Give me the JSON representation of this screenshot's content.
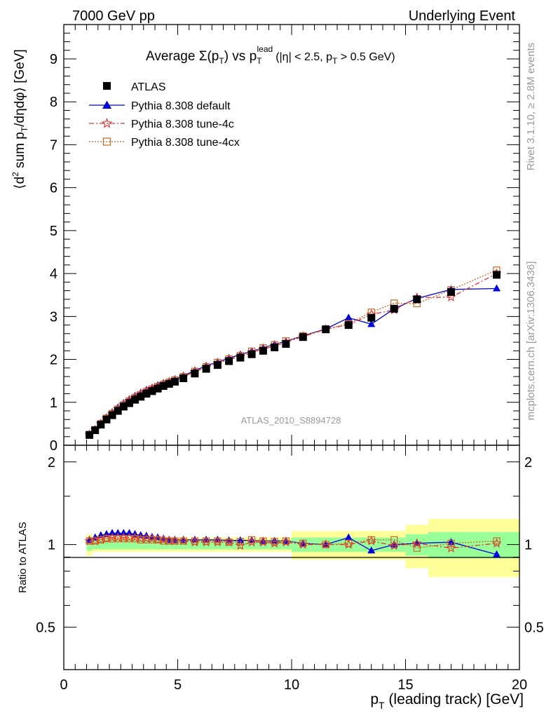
{
  "header": {
    "left": "7000 GeV pp",
    "right": "Underlying Event"
  },
  "side": {
    "rivet": "Rivet 3.1.10, ≥ 2.8M events",
    "mcplots": "mcplots.cern.ch [arXiv:1306.3436]"
  },
  "title": {
    "prefix": "Average",
    "sigma": "Σ(p",
    "sigma_sub": "T",
    "vs": ") vs p",
    "pt_sub": "T",
    "pt_sup": "lead",
    "cuts_a": "(|η| < 2.5, p",
    "cuts_sub": "T",
    "cuts_b": " > 0.5 GeV)"
  },
  "ylabel_main": {
    "a": "⟨d",
    "sup": "2",
    "b": " sum p",
    "sub": "T",
    "c": "/dηdφ⟩ [GeV]"
  },
  "ylabel_ratio": "Ratio to ATLAS",
  "xlabel": {
    "a": "p",
    "sub": "T",
    "b": " (leading track) [GeV]"
  },
  "watermark": "ATLAS_2010_S8894728",
  "colors": {
    "atlas": "#000000",
    "default": "#0000dd",
    "tune4c": "#dd3333",
    "tune4cx": "#cc6622",
    "band_inner": "#99ff99",
    "band_outer": "#ffff99"
  },
  "legend": {
    "entries": [
      "ATLAS",
      "Pythia 8.308 default",
      "Pythia 8.308 tune-4c",
      "Pythia 8.308 tune-4cx"
    ],
    "placement": "top-left"
  },
  "chart_data": [
    {
      "type": "scatter",
      "panel": "main",
      "xlim": [
        0,
        20
      ],
      "ylim": [
        0,
        9.8
      ],
      "yticks": [
        "0",
        "1",
        "2",
        "3",
        "4",
        "5",
        "6",
        "7",
        "8",
        "9"
      ],
      "xticks": [
        "0",
        "5",
        "10",
        "15",
        "20"
      ],
      "x": [
        1.125,
        1.375,
        1.625,
        1.875,
        2.125,
        2.375,
        2.625,
        2.875,
        3.125,
        3.375,
        3.625,
        3.875,
        4.125,
        4.375,
        4.625,
        4.875,
        5.25,
        5.75,
        6.25,
        6.75,
        7.25,
        7.75,
        8.25,
        8.75,
        9.25,
        9.75,
        10.5,
        11.5,
        12.5,
        13.5,
        14.5,
        15.5,
        17.0,
        19.0
      ],
      "series": [
        {
          "name": "ATLAS",
          "values": [
            0.24,
            0.35,
            0.48,
            0.6,
            0.7,
            0.8,
            0.9,
            0.98,
            1.06,
            1.13,
            1.2,
            1.26,
            1.32,
            1.38,
            1.43,
            1.48,
            1.56,
            1.67,
            1.78,
            1.87,
            1.96,
            2.04,
            2.12,
            2.2,
            2.28,
            2.36,
            2.52,
            2.7,
            2.8,
            2.97,
            3.18,
            3.4,
            3.57,
            3.97
          ]
        },
        {
          "name": "Pythia 8.308 default",
          "values": [
            0.25,
            0.37,
            0.52,
            0.65,
            0.77,
            0.88,
            0.98,
            1.07,
            1.15,
            1.22,
            1.29,
            1.34,
            1.4,
            1.45,
            1.49,
            1.54,
            1.62,
            1.74,
            1.85,
            1.94,
            2.03,
            2.11,
            2.19,
            2.27,
            2.35,
            2.42,
            2.55,
            2.71,
            2.97,
            2.82,
            3.18,
            3.42,
            3.63,
            3.65
          ]
        },
        {
          "name": "Pythia 8.308 tune-4c",
          "values": [
            0.25,
            0.36,
            0.5,
            0.63,
            0.74,
            0.85,
            0.95,
            1.04,
            1.12,
            1.19,
            1.26,
            1.32,
            1.37,
            1.43,
            1.47,
            1.52,
            1.6,
            1.71,
            1.82,
            1.91,
            2.0,
            2.06,
            2.16,
            2.24,
            2.31,
            2.4,
            2.53,
            2.7,
            2.81,
            3.05,
            3.15,
            3.44,
            3.45,
            4.0
          ]
        },
        {
          "name": "Pythia 8.308 tune-4cx",
          "values": [
            0.25,
            0.36,
            0.5,
            0.63,
            0.74,
            0.84,
            0.94,
            1.03,
            1.11,
            1.18,
            1.25,
            1.31,
            1.37,
            1.42,
            1.47,
            1.52,
            1.6,
            1.72,
            1.83,
            1.93,
            2.01,
            2.09,
            2.19,
            2.27,
            2.34,
            2.43,
            2.55,
            2.71,
            2.83,
            3.1,
            3.31,
            3.3,
            3.62,
            4.08
          ]
        }
      ]
    },
    {
      "type": "line",
      "panel": "ratio",
      "xlim": [
        0,
        20
      ],
      "ylim": [
        0.35,
        2.3
      ],
      "yticks": [
        "0.5",
        "1",
        "2"
      ],
      "ylabel": "Ratio to ATLAS",
      "band_edges": [
        1.0,
        1.25,
        10.0,
        15.0,
        16.0,
        20.0
      ],
      "band_inner": [
        0.05,
        0.04,
        0.06,
        0.09,
        0.11
      ],
      "band_outer": [
        0.09,
        0.06,
        0.12,
        0.18,
        0.24
      ],
      "series": [
        {
          "name": "Pythia 8.308 default",
          "values": [
            1.04,
            1.06,
            1.08,
            1.09,
            1.1,
            1.1,
            1.1,
            1.1,
            1.09,
            1.08,
            1.075,
            1.065,
            1.06,
            1.05,
            1.04,
            1.04,
            1.04,
            1.04,
            1.04,
            1.04,
            1.035,
            1.035,
            1.035,
            1.03,
            1.03,
            1.03,
            1.01,
            1.0,
            1.06,
            0.95,
            1.0,
            1.01,
            1.02,
            0.92
          ]
        },
        {
          "name": "Pythia 8.308 tune-4c",
          "values": [
            1.03,
            1.03,
            1.04,
            1.05,
            1.06,
            1.06,
            1.06,
            1.06,
            1.06,
            1.05,
            1.05,
            1.05,
            1.04,
            1.04,
            1.03,
            1.03,
            1.03,
            1.02,
            1.02,
            1.02,
            1.02,
            0.99,
            1.02,
            1.02,
            1.01,
            1.02,
            1.0,
            1.0,
            1.0,
            1.03,
            0.99,
            1.01,
            0.97,
            1.01
          ]
        },
        {
          "name": "Pythia 8.308 tune-4cx",
          "values": [
            1.03,
            1.03,
            1.04,
            1.05,
            1.05,
            1.05,
            1.05,
            1.05,
            1.05,
            1.04,
            1.04,
            1.04,
            1.04,
            1.03,
            1.03,
            1.03,
            1.03,
            1.03,
            1.03,
            1.03,
            1.02,
            1.025,
            1.04,
            1.03,
            1.025,
            1.03,
            1.01,
            1.0,
            1.01,
            1.04,
            1.04,
            0.97,
            1.01,
            1.03
          ]
        }
      ]
    }
  ]
}
